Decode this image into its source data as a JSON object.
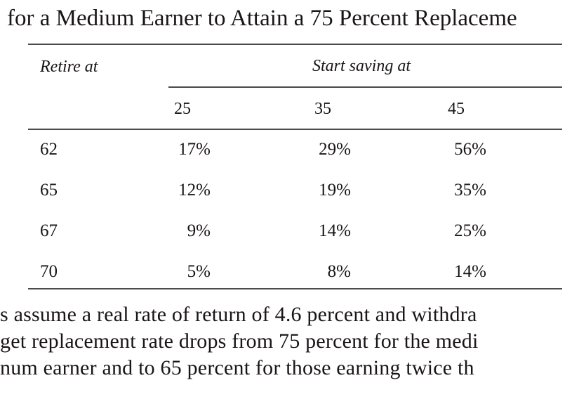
{
  "title": "for a Medium Earner to Attain a 75 Percent Replaceme",
  "table": {
    "row_header_label": "Retire at",
    "col_group_label": "Start saving at",
    "columns": [
      "25",
      "35",
      "45"
    ],
    "rows": [
      {
        "retire_at": "62",
        "values": [
          "17%",
          "29%",
          "56%"
        ]
      },
      {
        "retire_at": "65",
        "values": [
          "12%",
          "19%",
          "35%"
        ]
      },
      {
        "retire_at": "67",
        "values": [
          "9%",
          "14%",
          "25%"
        ]
      },
      {
        "retire_at": "70",
        "values": [
          "5%",
          "8%",
          "14%"
        ]
      }
    ]
  },
  "note_lines": [
    "s assume a real rate of return of 4.6 percent and withdra",
    "get replacement rate drops from 75 percent for the medi",
    "num earner and to 65 percent for those earning twice th"
  ],
  "colors": {
    "background": "#ffffff",
    "text": "#1a1516",
    "rule": "#4a4a4a"
  }
}
